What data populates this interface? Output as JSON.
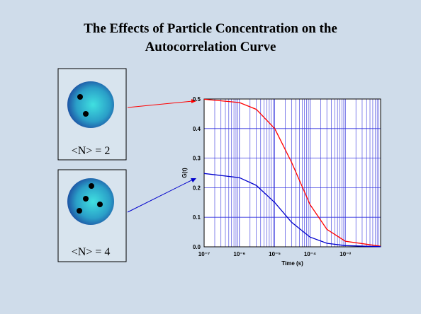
{
  "chart_data": {
    "type": "line",
    "title_lines": [
      "The Effects of Particle Concentration on the",
      "Autocorrelation Curve"
    ],
    "annotations": [
      "<N> = 2",
      "<N> = 4"
    ],
    "xlabel": "Time (s)",
    "ylabel": "G(t)",
    "x": [
      1e-07,
      1e-06,
      3e-06,
      1e-05,
      3e-05,
      0.0001,
      0.0003,
      0.001,
      0.01
    ],
    "series": [
      {
        "color": "#ff0000",
        "values": [
          0.499,
          0.488,
          0.465,
          0.4,
          0.286,
          0.143,
          0.059,
          0.019,
          0.002
        ]
      },
      {
        "color": "#0000cc",
        "values": [
          0.248,
          0.234,
          0.208,
          0.15,
          0.083,
          0.033,
          0.012,
          0.004,
          0.0004
        ]
      }
    ],
    "xscale": "log",
    "xlim": [
      1e-07,
      0.01
    ],
    "xticks": [
      {
        "value": 1e-07,
        "label": "10⁻⁷"
      },
      {
        "value": 1e-06,
        "label": "10⁻⁶"
      },
      {
        "value": 1e-05,
        "label": "10⁻⁵"
      },
      {
        "value": 0.0001,
        "label": "10⁻⁴"
      },
      {
        "value": 0.001,
        "label": "10⁻³"
      }
    ],
    "ylim": [
      0,
      0.5
    ],
    "yticks": [
      {
        "value": 0,
        "label": "0.0"
      },
      0.1,
      0.2,
      0.3,
      0.4,
      0.5
    ],
    "grid": true,
    "grid_color": "#3333dd"
  }
}
